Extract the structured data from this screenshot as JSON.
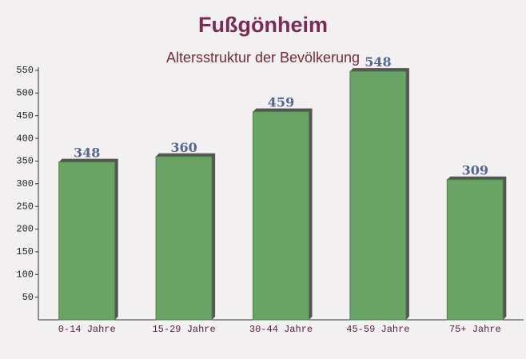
{
  "chart_data": {
    "type": "bar",
    "title": "Fußgönheim",
    "subtitle": "Altersstruktur der Bevölkerung",
    "categories": [
      "0-14 Jahre",
      "15-29 Jahre",
      "30-44 Jahre",
      "45-59 Jahre",
      "75+ Jahre"
    ],
    "values": [
      348,
      360,
      459,
      548,
      309
    ],
    "color": "#6aa464",
    "ylim": [
      0,
      550
    ],
    "yticks": [
      50,
      100,
      150,
      200,
      250,
      300,
      350,
      400,
      450,
      500,
      550
    ]
  }
}
